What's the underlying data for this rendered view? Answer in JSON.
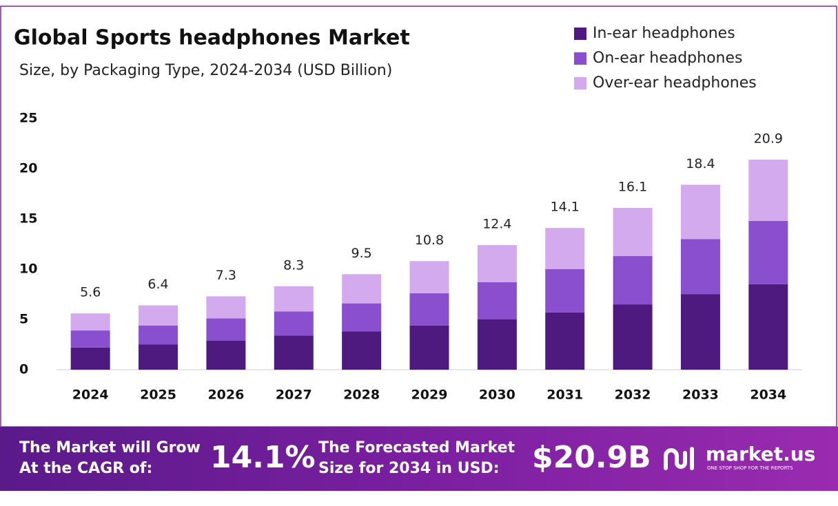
{
  "chart_data": {
    "type": "stacked-bar",
    "title": "Global Sports headphones Market",
    "subtitle": "Size, by Packaging Type, 2024-2034 (USD Billion)",
    "categories": [
      "2024",
      "2025",
      "2026",
      "2027",
      "2028",
      "2029",
      "2030",
      "2031",
      "2032",
      "2033",
      "2034"
    ],
    "series": [
      {
        "name": "In-ear headphones",
        "color": "#4f1a80",
        "values": [
          2.2,
          2.5,
          2.9,
          3.4,
          3.8,
          4.4,
          5.0,
          5.7,
          6.5,
          7.5,
          8.5
        ]
      },
      {
        "name": "On-ear headphones",
        "color": "#8a4fcf",
        "values": [
          1.7,
          1.9,
          2.2,
          2.4,
          2.8,
          3.2,
          3.7,
          4.3,
          4.8,
          5.5,
          6.3
        ]
      },
      {
        "name": "Over-ear headphones",
        "color": "#d3aaee",
        "values": [
          1.7,
          2.0,
          2.2,
          2.5,
          2.9,
          3.2,
          3.7,
          4.1,
          4.8,
          5.4,
          6.1
        ]
      }
    ],
    "totals": [
      5.6,
      6.4,
      7.3,
      8.3,
      9.5,
      10.8,
      12.4,
      14.1,
      16.1,
      18.4,
      20.9
    ],
    "ylim": [
      0,
      25
    ],
    "yticks": [
      0,
      5,
      10,
      15,
      20,
      25
    ],
    "legend": "top-right"
  },
  "footer": {
    "cagr_text": [
      "The Market will Grow",
      "At the CAGR of:"
    ],
    "cagr_value": "14.1%",
    "forecast_text": [
      "The Forecasted Market",
      "Size for 2034 in USD:"
    ],
    "forecast_value": "$20.9B",
    "brand": "market.us",
    "tagline": "ONE STOP SHOP FOR THE REPORTS"
  }
}
